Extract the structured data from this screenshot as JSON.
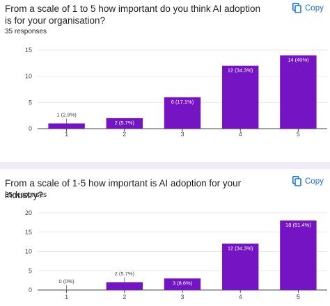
{
  "copy_label": "Copy",
  "colors": {
    "bar": "#7514c2",
    "copy": "#1a73e8",
    "grid": "#e8e8e8",
    "separator": "#f0ebf8"
  },
  "questions": [
    {
      "title": "From a scale of 1 to 5 how important do you think AI adoption is for your organisation?",
      "responses": "35 responses"
    },
    {
      "title": "From a scale of 1-5 how important is AI adoption for your industry?",
      "responses": "35 responses"
    }
  ],
  "chart_data": [
    {
      "type": "bar",
      "categories": [
        "1",
        "2",
        "3",
        "4",
        "5"
      ],
      "values": [
        1,
        2,
        6,
        12,
        14
      ],
      "labels": [
        "1 (2.9%)",
        "2 (5.7%)",
        "6 (17.1%)",
        "12 (34.3%)",
        "14 (40%)"
      ],
      "ylim": [
        0,
        15
      ],
      "yticks": [
        0,
        5,
        10,
        15
      ],
      "grid": true
    },
    {
      "type": "bar",
      "categories": [
        "1",
        "2",
        "3",
        "4",
        "5"
      ],
      "values": [
        0,
        2,
        3,
        12,
        18
      ],
      "labels": [
        "0 (0%)",
        "2 (5.7%)",
        "3 (8.6%)",
        "12 (34.3%)",
        "18 (51.4%)"
      ],
      "ylim": [
        0,
        20
      ],
      "yticks": [
        0,
        5,
        10,
        15,
        20
      ],
      "grid": true
    }
  ]
}
